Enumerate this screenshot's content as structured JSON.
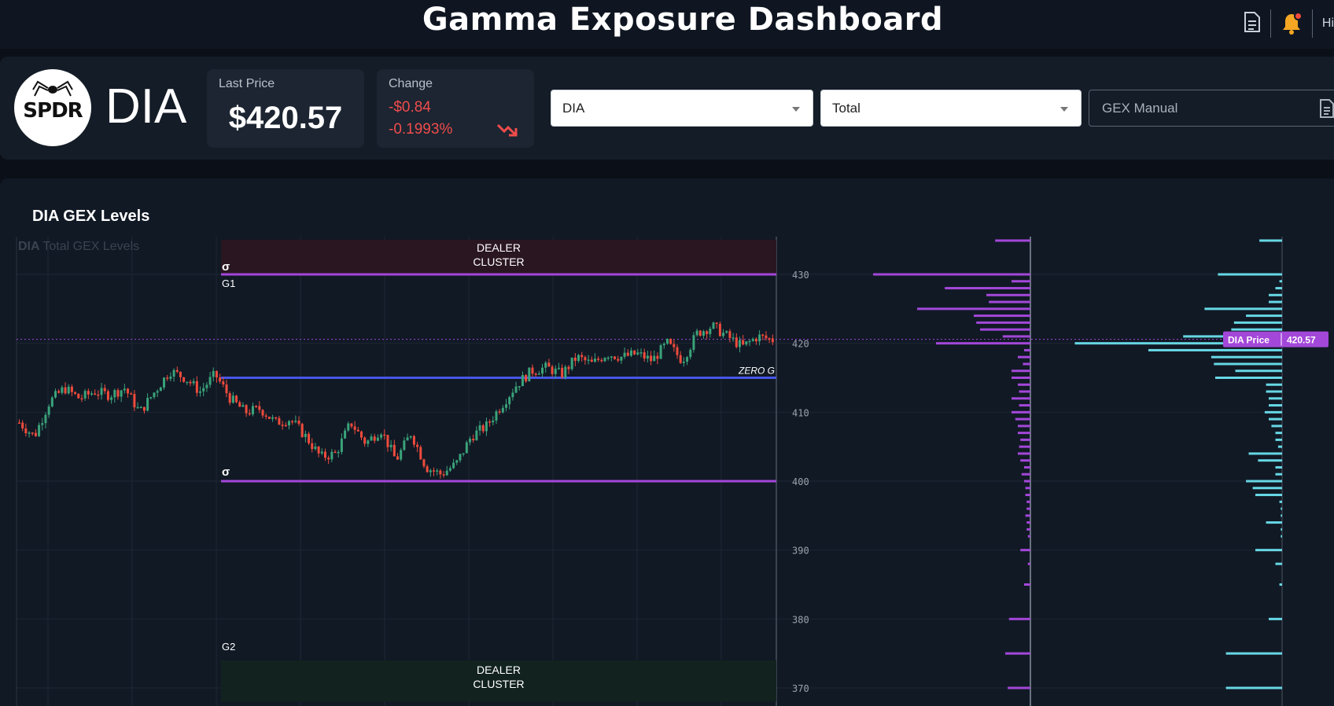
{
  "header": {
    "title": "Gamma Exposure Dashboard",
    "greeting": "Hi"
  },
  "ticker": {
    "logo_text": "SPDR",
    "symbol": "DIA",
    "last_price_label": "Last Price",
    "last_price": "$420.57",
    "change_label": "Change",
    "change": "-$0.84",
    "change_pct": "-0.1993%"
  },
  "controls": {
    "ticker_select": "DIA",
    "type_select": "Total",
    "manual_label": "GEX Manual"
  },
  "colors": {
    "up": "#3aa37a",
    "down": "#ef4b3c",
    "purple": "#a347d9",
    "blue": "#4656e6",
    "cyan": "#67d7e4",
    "negative": "#f04c4c"
  },
  "icons": [
    "document-icon",
    "bell-icon",
    "trend-down-icon",
    "document-icon"
  ],
  "chart_data": {
    "type": "candlestick",
    "panel_title": "DIA GEX Levels",
    "watermark_symbol": "DIA",
    "watermark_text": "Total GEX Levels",
    "y_ticks": [
      430,
      420,
      410,
      400,
      390,
      380,
      370
    ],
    "ylim": [
      367,
      435
    ],
    "levels": [
      {
        "name": "σ",
        "label": "G1",
        "value": 430.0
      },
      {
        "name": "ZERO G",
        "value": 415.0
      },
      {
        "name": "σ",
        "value": 400.0
      }
    ],
    "g2_label": "G2",
    "zones": [
      {
        "label": "DEALER CLUSTER",
        "range": [
          430,
          435
        ]
      },
      {
        "label": "DEALER CLUSTER",
        "range": [
          368,
          374
        ]
      }
    ],
    "current_price": {
      "label": "DIA Price",
      "value": "420.57"
    },
    "close_path": [
      408.5,
      406.5,
      411.5,
      413.5,
      412,
      413,
      412.5,
      413.5,
      410,
      413,
      416,
      415,
      413,
      415.5,
      412,
      410,
      410.5,
      408.5,
      409,
      406.5,
      403.5,
      404,
      408.5,
      405.5,
      407.5,
      403,
      407,
      402,
      401,
      402.5,
      406.5,
      408,
      411,
      414,
      416,
      416.5,
      415.5,
      418,
      417,
      418.5,
      418,
      418.5,
      417.5,
      420,
      417.5,
      421.5,
      422.5,
      421,
      419.5,
      421,
      420.5
    ],
    "gex_strikes": [
      434,
      430,
      429,
      428,
      427,
      426,
      425,
      424,
      423,
      422,
      421,
      420,
      419,
      418,
      417,
      416,
      415,
      414,
      413,
      412,
      411,
      410,
      409,
      408,
      407,
      406,
      405,
      404,
      403,
      402,
      401,
      400,
      399,
      398,
      397,
      396,
      395,
      394,
      393,
      392,
      390,
      388,
      385,
      380,
      375,
      370
    ],
    "gex_values": [
      0.28,
      1.25,
      0.15,
      0.68,
      0.35,
      0.33,
      0.9,
      0.45,
      0.43,
      0.4,
      0.22,
      0.75,
      0.05,
      0.1,
      0.06,
      0.15,
      0.15,
      0.1,
      0.09,
      0.15,
      0.09,
      0.15,
      0.12,
      0.1,
      0.1,
      0.08,
      0.09,
      0.1,
      0.08,
      0.05,
      0.07,
      0.05,
      0.04,
      0.04,
      0.03,
      0.03,
      0.04,
      0.03,
      0.03,
      0.02,
      0.08,
      0.02,
      0.05,
      0.17,
      0.2,
      0.18
    ],
    "oi_values": [
      0.17,
      0.48,
      0.02,
      0.05,
      0.1,
      0.1,
      0.58,
      0.27,
      0.36,
      0.38,
      0.74,
      1.55,
      1.0,
      0.53,
      0.51,
      0.35,
      0.5,
      0.12,
      0.12,
      0.1,
      0.1,
      0.13,
      0.1,
      0.08,
      0.05,
      0.05,
      0.03,
      0.25,
      0.18,
      0.05,
      0.05,
      0.27,
      0.22,
      0.2,
      0.02,
      0.01,
      0.01,
      0.12,
      0.01,
      0.01,
      0.2,
      0.05,
      0.02,
      0.1,
      0.42,
      0.42
    ]
  }
}
